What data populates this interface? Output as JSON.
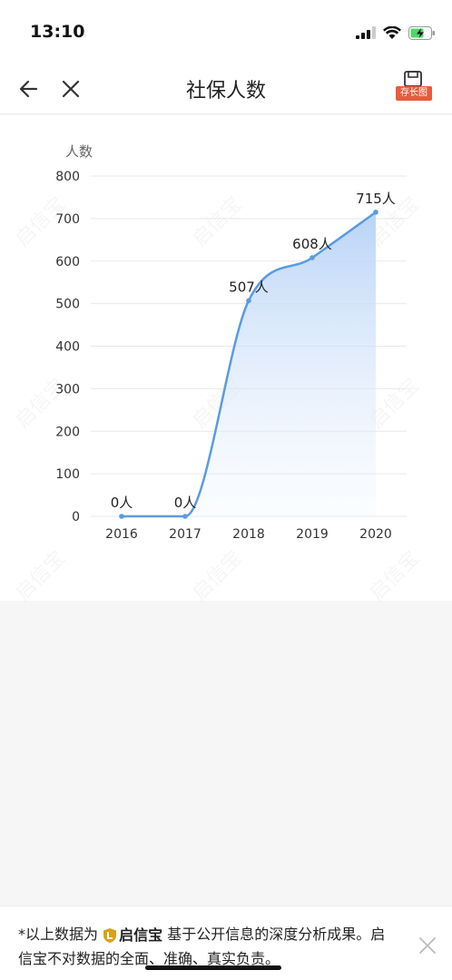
{
  "status_bar": {
    "time": "13:10"
  },
  "nav": {
    "title": "社保人数",
    "save_badge": "存长图"
  },
  "watermark": "启信宝",
  "chart_data": {
    "type": "area",
    "ylabel": "人数",
    "categories": [
      "2016",
      "2017",
      "2018",
      "2019",
      "2020"
    ],
    "values": [
      0,
      0,
      507,
      608,
      715
    ],
    "data_labels": [
      "0人",
      "0人",
      "507人",
      "608人",
      "715人"
    ],
    "y_ticks": [
      "0",
      "100",
      "200",
      "300",
      "400",
      "500",
      "600",
      "700",
      "800"
    ],
    "ylim": [
      0,
      800
    ],
    "grid": true,
    "line_color": "#5b9be0",
    "fill_color": "#cfe2fb"
  },
  "footer": {
    "prefix": "*以上数据为",
    "brand": "启信宝",
    "suffix": "基于公开信息的深度分析成果。启信宝不对数据的全面、准确、真实负责。",
    "brand_color": "#d9a118"
  }
}
